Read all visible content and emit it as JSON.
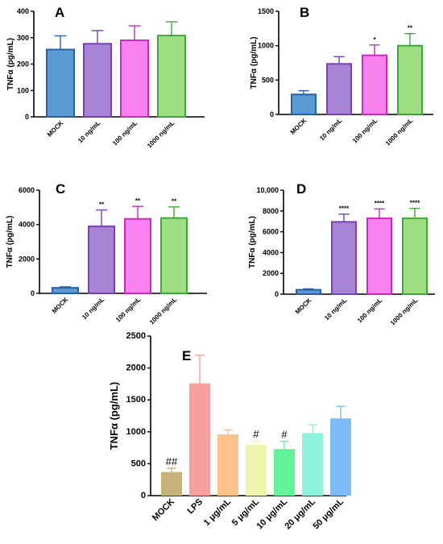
{
  "chart_data": [
    {
      "type": "bar",
      "panel": "A",
      "ylabel": "TNFα (pg/mL)",
      "ylim": [
        0,
        400
      ],
      "yticks": [
        0,
        100,
        200,
        300,
        400
      ],
      "categories": [
        "MOCK",
        "10 ng/mL",
        "100 ng/mL",
        "1000 ng/mL"
      ],
      "values": [
        255,
        277,
        290,
        308
      ],
      "errors": [
        52,
        50,
        55,
        52
      ],
      "annotations": [
        "",
        "",
        "",
        ""
      ],
      "colors": [
        "#5b9bd5",
        "#a784d4",
        "#f981f0",
        "#9fde81"
      ],
      "edges": [
        "#2a5fa5",
        "#7a3fb0",
        "#c72bb8",
        "#3ea83a"
      ]
    },
    {
      "type": "bar",
      "panel": "B",
      "ylabel": "TNFα (pg/mL)",
      "ylim": [
        0,
        1500
      ],
      "yticks": [
        0,
        500,
        1000,
        1500
      ],
      "categories": [
        "MOCK",
        "10 ng/mL",
        "100 ng/mL",
        "1000 ng/mL"
      ],
      "values": [
        290,
        735,
        860,
        1000
      ],
      "errors": [
        55,
        105,
        150,
        175
      ],
      "annotations": [
        "",
        "",
        "*",
        "**"
      ],
      "colors": [
        "#5b9bd5",
        "#a784d4",
        "#f981f0",
        "#9fde81"
      ],
      "edges": [
        "#2a5fa5",
        "#7a3fb0",
        "#c72bb8",
        "#3ea83a"
      ]
    },
    {
      "type": "bar",
      "panel": "C",
      "ylabel": "TNFα (pg/mL)",
      "ylim": [
        0,
        6000
      ],
      "yticks": [
        0,
        2000,
        4000,
        6000
      ],
      "categories": [
        "MOCK",
        "10 ng/mL",
        "100 ng/mL",
        "1000 ng/mL"
      ],
      "values": [
        320,
        3900,
        4330,
        4380
      ],
      "errors": [
        60,
        950,
        730,
        650
      ],
      "annotations": [
        "",
        "**",
        "**",
        "**"
      ],
      "colors": [
        "#5b9bd5",
        "#a784d4",
        "#f981f0",
        "#9fde81"
      ],
      "edges": [
        "#2a5fa5",
        "#7a3fb0",
        "#c72bb8",
        "#3ea83a"
      ]
    },
    {
      "type": "bar",
      "panel": "D",
      "ylabel": "TNFα (pg/mL)",
      "ylim": [
        0,
        10000
      ],
      "yticks": [
        0,
        2000,
        4000,
        6000,
        8000,
        10000
      ],
      "ytick_labels": [
        "0",
        "2000",
        "4000",
        "6000",
        "8000",
        "10,000"
      ],
      "categories": [
        "MOCK",
        "10 ng/mL",
        "100 ng/mL",
        "1000 ng/mL"
      ],
      "values": [
        420,
        6950,
        7300,
        7300
      ],
      "errors": [
        90,
        750,
        900,
        950
      ],
      "annotations": [
        "",
        "****",
        "****",
        "****"
      ],
      "colors": [
        "#5b9bd5",
        "#a784d4",
        "#f981f0",
        "#9fde81"
      ],
      "edges": [
        "#2a5fa5",
        "#7a3fb0",
        "#c72bb8",
        "#3ea83a"
      ]
    },
    {
      "type": "bar",
      "panel": "E",
      "ylabel": "TNFα (pg/mL)",
      "ylim": [
        0,
        2500
      ],
      "yticks": [
        0,
        500,
        1000,
        1500,
        2000,
        2500
      ],
      "categories": [
        "MOCK",
        "LPS",
        "1 μg/mL",
        "5 μg/mL",
        "10 μg/mL",
        "20 μg/mL",
        "50 μg/mL"
      ],
      "values": [
        370,
        1760,
        960,
        800,
        730,
        980,
        1210
      ],
      "errors": [
        60,
        440,
        70,
        60,
        120,
        130,
        190
      ],
      "annotations": [
        "##",
        "",
        "",
        "#",
        "#",
        "",
        ""
      ],
      "colors": [
        "#c7b27a",
        "#f7a0a0",
        "#fdc38a",
        "#eff5ae",
        "#64f29a",
        "#8ff2dc",
        "#7dbcf8"
      ],
      "edges": [
        "#c7b27a",
        "#f7a0a0",
        "#fdc38a",
        "#eff5ae",
        "#64f29a",
        "#8ff2dc",
        "#7dbcf8"
      ]
    }
  ]
}
